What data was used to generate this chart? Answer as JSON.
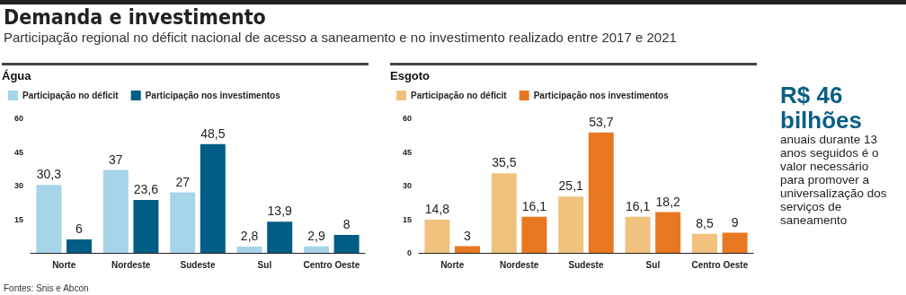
{
  "chart_data": [
    {
      "type": "other",
      "title": "Demanda e investimento",
      "subtitle": "Participação regional no déficit nacional de acesso a saneamento e no investimento realizado entre 2017 e 2021",
      "annotations": [
        "Fontes: Snis e Abcon"
      ]
    },
    {
      "type": "bar",
      "title": "Água",
      "categories": [
        "Norte",
        "Nordeste",
        "Sudeste",
        "Sul",
        "Centro Oeste"
      ],
      "series": [
        {
          "name": "Participação no déficit",
          "color": "#a6d4e8",
          "values": [
            30.3,
            37,
            27,
            2.8,
            2.9
          ],
          "value_labels": [
            "30,3",
            "37",
            "27",
            "2,8",
            "2,9"
          ]
        },
        {
          "name": "Participação nos investimentos",
          "color": "#005d85",
          "values": [
            6,
            23.6,
            48.5,
            13.9,
            8
          ],
          "value_labels": [
            "6",
            "23,6",
            "48,5",
            "13,9",
            "8"
          ]
        }
      ],
      "ylim": [
        0,
        60
      ],
      "yticks": [
        15,
        30,
        45,
        60
      ],
      "grid": false,
      "legend": "top left"
    },
    {
      "type": "bar",
      "title": "Esgoto",
      "categories": [
        "Norte",
        "Nordeste",
        "Sudeste",
        "Sul",
        "Centro Oeste"
      ],
      "series": [
        {
          "name": "Participação no déficit",
          "color": "#f0c27e",
          "values": [
            14.8,
            35.5,
            25.1,
            16.1,
            8.5
          ],
          "value_labels": [
            "14,8",
            "35,5",
            "25,1",
            "16,1",
            "8,5"
          ]
        },
        {
          "name": "Participação nos investimentos",
          "color": "#e87722",
          "values": [
            3,
            16.1,
            53.7,
            18.2,
            9
          ],
          "value_labels": [
            "3",
            "16,1",
            "53,7",
            "18,2",
            "9"
          ]
        }
      ],
      "ylim": [
        0,
        60
      ],
      "yticks": [
        0,
        15,
        30,
        45,
        60
      ],
      "grid": false,
      "legend": "top left"
    },
    {
      "type": "other",
      "title": "R$ 46 bilhões",
      "annotations": [
        "anuais durante 13 anos seguidos é o valor necessário para promover a universalização dos serviços de saneamento"
      ]
    }
  ]
}
